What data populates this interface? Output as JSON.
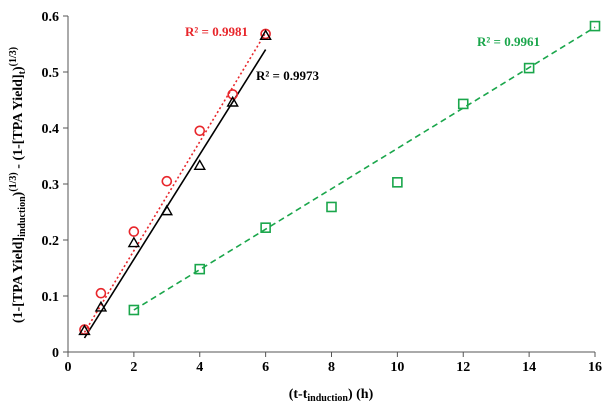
{
  "chart_data": {
    "type": "scatter",
    "xlabel": {
      "main": "(t-t",
      "sub": "induction",
      "tail": ") (h)"
    },
    "ylabel": {
      "p1": "(1-[TPA Yield]",
      "s1": "induction",
      "p2": ")",
      "x1": "(1/3)",
      "p3": " - (1-[TPA Yield]",
      "s2": "t",
      "p4": ")",
      "x2": "(1/3)"
    },
    "xlim": [
      0,
      16
    ],
    "ylim": [
      0,
      0.6
    ],
    "xticks": [
      "0",
      "2",
      "4",
      "6",
      "8",
      "10",
      "12",
      "14",
      "16"
    ],
    "yticks": [
      "0",
      "0.1",
      "0.2",
      "0.3",
      "0.4",
      "0.5",
      "0.6"
    ],
    "grid": false,
    "legend": false,
    "series": [
      {
        "marker": "circle",
        "color": "#e8262b",
        "x": [
          0.5,
          1,
          2,
          3,
          4,
          5,
          6
        ],
        "y": [
          0.04,
          0.105,
          0.215,
          0.305,
          0.395,
          0.46,
          0.568
        ],
        "trendline": {
          "style": "dotted",
          "x": [
            0.5,
            6
          ],
          "y": [
            0.035,
            0.57
          ]
        },
        "r2_label": "R² = 0.9981"
      },
      {
        "marker": "triangle",
        "color": "#000000",
        "x": [
          0.5,
          1,
          2,
          3,
          4,
          5,
          6
        ],
        "y": [
          0.038,
          0.08,
          0.195,
          0.252,
          0.333,
          0.446,
          0.565
        ],
        "trendline": {
          "style": "solid",
          "x": [
            0.5,
            6
          ],
          "y": [
            0.025,
            0.54
          ]
        },
        "r2_label": "R² = 0.9973"
      },
      {
        "marker": "square",
        "color": "#1aa64b",
        "x": [
          2,
          4,
          6,
          8,
          10,
          12,
          14,
          16
        ],
        "y": [
          0.075,
          0.148,
          0.222,
          0.259,
          0.303,
          0.443,
          0.507,
          0.582
        ],
        "trendline": {
          "style": "dashed",
          "x": [
            2,
            16
          ],
          "y": [
            0.075,
            0.58
          ]
        },
        "r2_label": "R² = 0.9961"
      }
    ]
  }
}
